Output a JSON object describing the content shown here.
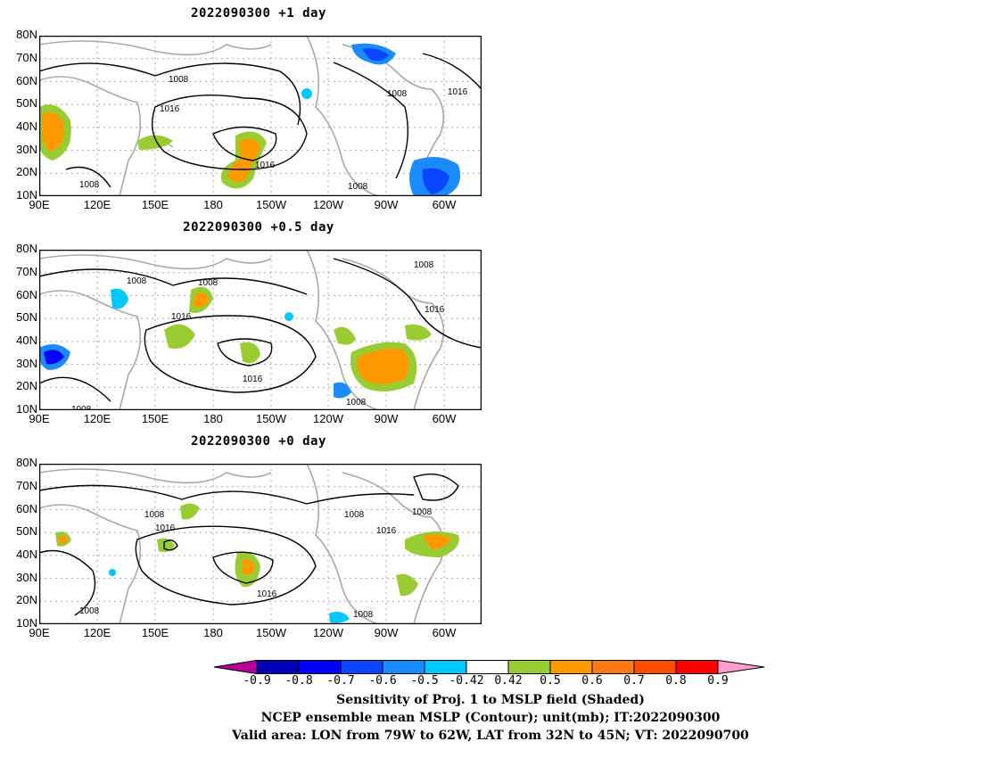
{
  "panels": [
    {
      "title": "2022090300  +1 day",
      "contour_labels": [
        "1008",
        "1016",
        "1008",
        "1016",
        "1016",
        "1008",
        "1008"
      ],
      "highlight_label": "1016"
    },
    {
      "title": "2022090300  +0.5 day",
      "contour_labels": [
        "1008",
        "1008",
        "1016",
        "1008",
        "1016",
        "1008",
        "1016",
        "1008"
      ]
    },
    {
      "title": "2022090300  +0 day",
      "contour_labels": [
        "1008",
        "1016",
        "1008",
        "1008",
        "1016",
        "1016",
        "1008",
        "1008"
      ]
    }
  ],
  "lat_ticks": [
    "80N",
    "70N",
    "60N",
    "50N",
    "40N",
    "30N",
    "20N",
    "10N"
  ],
  "lon_ticks": [
    "90E",
    "120E",
    "150E",
    "180",
    "150W",
    "120W",
    "90W",
    "60W"
  ],
  "colorbar": {
    "labels": [
      "-0.9",
      "-0.8",
      "-0.7",
      "-0.6",
      "-0.5",
      "-0.42",
      "0.42",
      "0.5",
      "0.6",
      "0.7",
      "0.8",
      "0.9"
    ],
    "colors": [
      "#b8009a",
      "#0000b8",
      "#0000ff",
      "#0a46ff",
      "#1a8cff",
      "#00c8ff",
      "#ffffff",
      "#99cc33",
      "#ff9900",
      "#ff7a14",
      "#ff4d00",
      "#ff0000",
      "#ff9ecf"
    ]
  },
  "captions": [
    "Sensitivity of Proj. 1 to MSLP field (Shaded)",
    "NCEP ensemble mean MSLP (Contour); unit(mb); IT:2022090300",
    "Valid area: LON from 79W to 62W, LAT from 32N to 45N; VT: 2022090700"
  ]
}
